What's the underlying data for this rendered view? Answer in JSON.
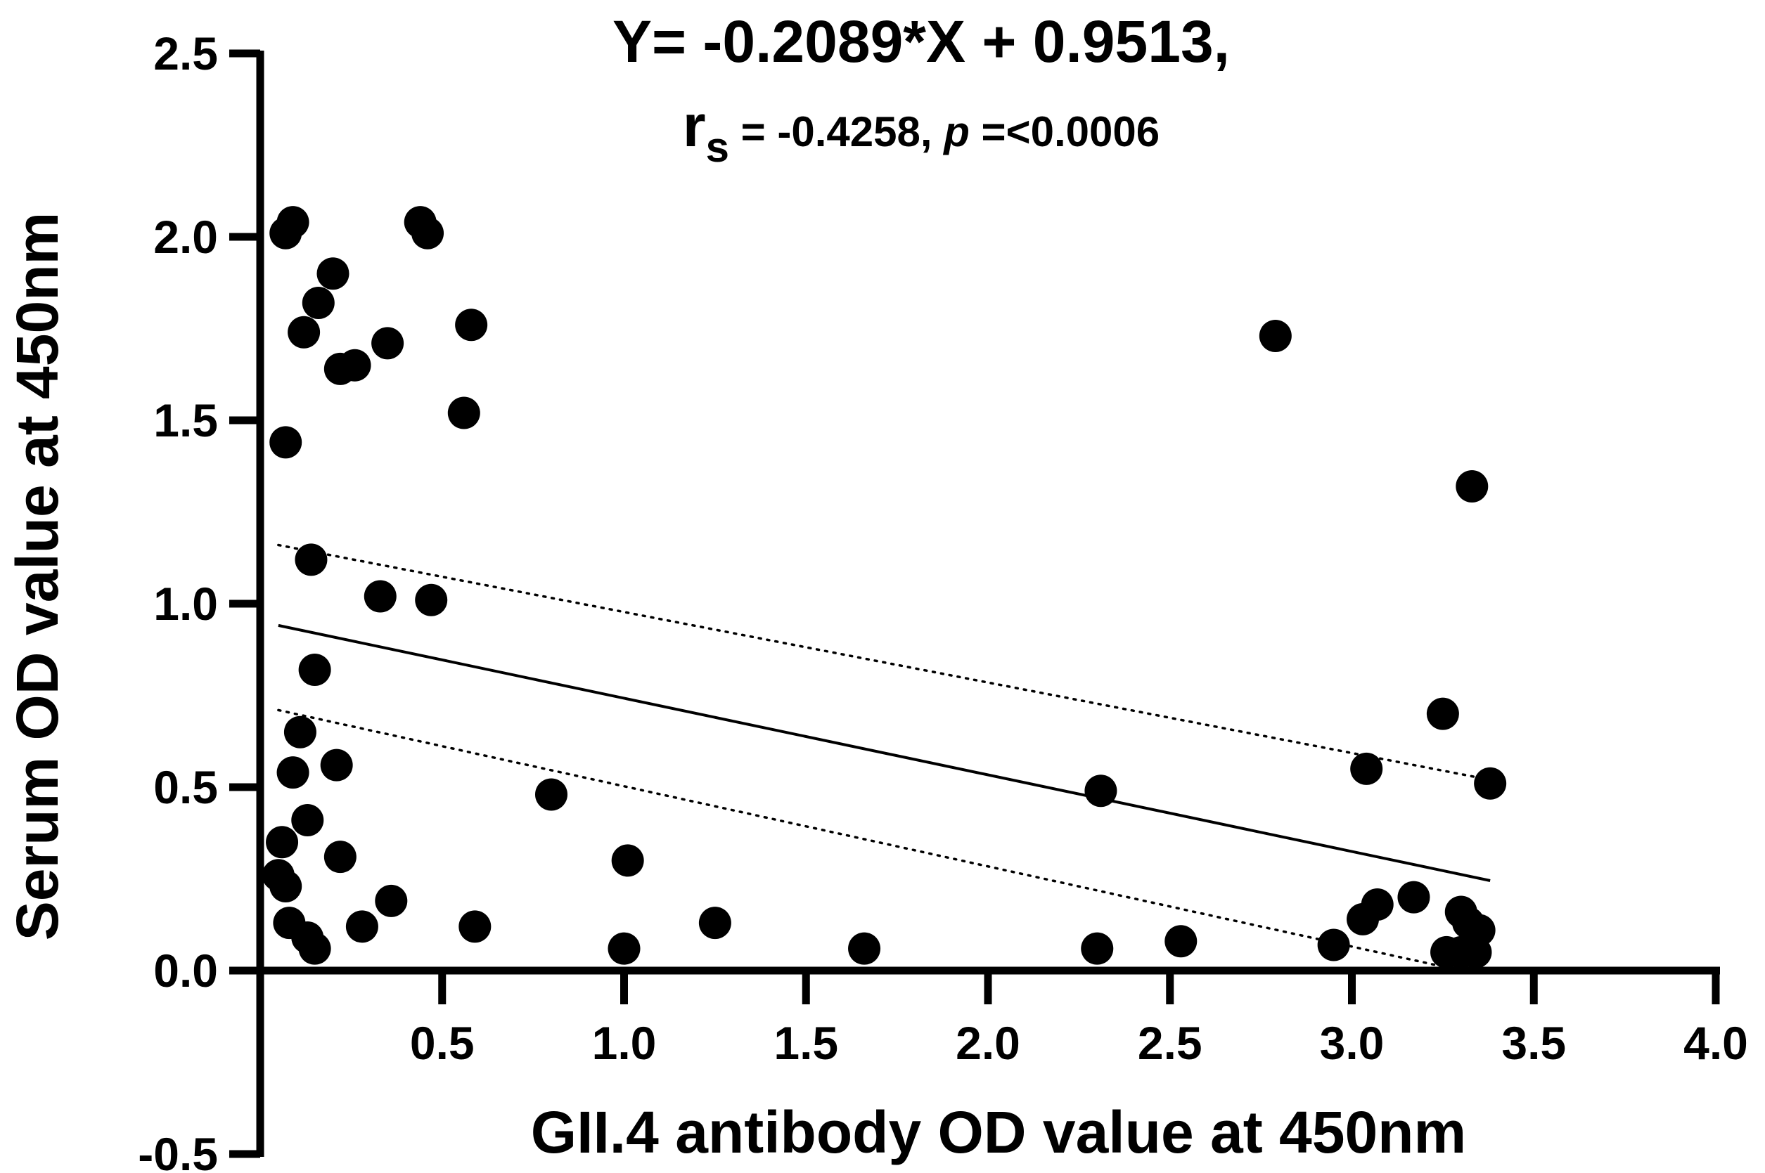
{
  "chart_data": {
    "type": "scatter",
    "title": "Y= -0.2089*X + 0.9513,",
    "stats": {
      "r_letter": "r",
      "r_subscript": "s",
      "r_value": " = -0.4258, ",
      "p_letter": "p",
      "p_value": " =<0.0006"
    },
    "xlabel": "GII.4 antibody OD value at 450nm",
    "ylabel": "Serum OD value at 450nm",
    "xlim": [
      0,
      4.0
    ],
    "ylim": [
      -0.5,
      2.5
    ],
    "x_ticks": [
      "0.5",
      "1.0",
      "1.5",
      "2.0",
      "2.5",
      "3.0",
      "3.5",
      "4.0"
    ],
    "y_ticks": [
      "-0.5",
      "0.0",
      "0.5",
      "1.0",
      "1.5",
      "2.0",
      "2.5"
    ],
    "regression": {
      "slope": -0.2089,
      "intercept": 0.9513,
      "x_range": [
        0.05,
        3.38
      ]
    },
    "confidence_band": {
      "upper": [
        [
          0.05,
          1.16
        ],
        [
          3.38,
          0.52
        ]
      ],
      "lower": [
        [
          0.05,
          0.71
        ],
        [
          3.3,
          0.0
        ]
      ]
    },
    "points": [
      [
        0.07,
        2.01
      ],
      [
        0.09,
        2.04
      ],
      [
        0.44,
        2.04
      ],
      [
        0.46,
        2.01
      ],
      [
        0.2,
        1.9
      ],
      [
        0.16,
        1.82
      ],
      [
        0.12,
        1.74
      ],
      [
        0.22,
        1.64
      ],
      [
        0.26,
        1.65
      ],
      [
        0.35,
        1.71
      ],
      [
        0.58,
        1.76
      ],
      [
        0.56,
        1.52
      ],
      [
        0.07,
        1.44
      ],
      [
        0.14,
        1.12
      ],
      [
        0.33,
        1.02
      ],
      [
        0.47,
        1.01
      ],
      [
        0.15,
        0.82
      ],
      [
        0.11,
        0.65
      ],
      [
        0.09,
        0.54
      ],
      [
        0.21,
        0.56
      ],
      [
        0.13,
        0.41
      ],
      [
        0.06,
        0.35
      ],
      [
        0.22,
        0.31
      ],
      [
        0.05,
        0.26
      ],
      [
        0.07,
        0.23
      ],
      [
        0.08,
        0.13
      ],
      [
        0.13,
        0.09
      ],
      [
        0.15,
        0.06
      ],
      [
        0.28,
        0.12
      ],
      [
        0.36,
        0.19
      ],
      [
        0.59,
        0.12
      ],
      [
        0.8,
        0.48
      ],
      [
        1.01,
        0.3
      ],
      [
        1.0,
        0.06
      ],
      [
        1.25,
        0.13
      ],
      [
        1.66,
        0.06
      ],
      [
        2.31,
        0.49
      ],
      [
        2.3,
        0.06
      ],
      [
        2.53,
        0.08
      ],
      [
        2.79,
        1.73
      ],
      [
        2.95,
        0.07
      ],
      [
        3.04,
        0.55
      ],
      [
        3.03,
        0.14
      ],
      [
        3.07,
        0.18
      ],
      [
        3.17,
        0.2
      ],
      [
        3.25,
        0.7
      ],
      [
        3.33,
        1.32
      ],
      [
        3.38,
        0.51
      ],
      [
        3.3,
        0.16
      ],
      [
        3.32,
        0.13
      ],
      [
        3.35,
        0.11
      ],
      [
        3.26,
        0.05
      ],
      [
        3.3,
        0.05
      ],
      [
        3.34,
        0.05
      ]
    ]
  },
  "colors": {
    "ink": "#000000",
    "background": "#ffffff"
  }
}
